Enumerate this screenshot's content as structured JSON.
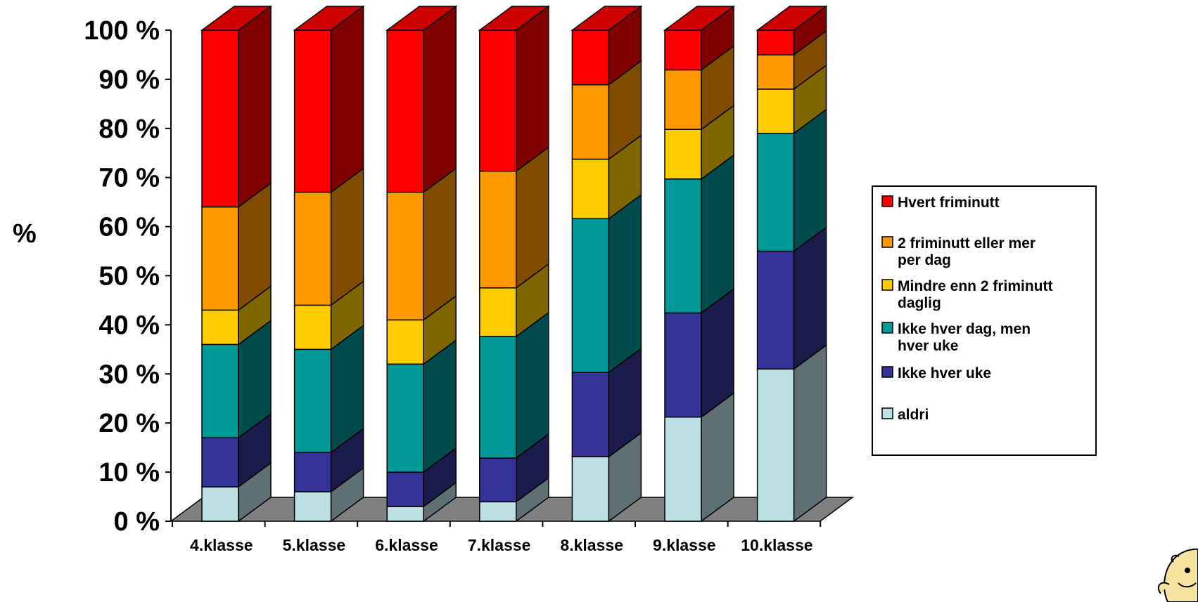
{
  "chart_data": {
    "type": "bar",
    "stacked": true,
    "percent_stacked": true,
    "three_d": true,
    "ylabel": "%",
    "xlabel": "",
    "ylim": [
      0,
      100
    ],
    "y_ticks": [
      "0 %",
      "10 %",
      "20 %",
      "30 %",
      "40 %",
      "50 %",
      "60 %",
      "70 %",
      "80 %",
      "90 %",
      "100 %"
    ],
    "categories": [
      "4.klasse",
      "5.klasse",
      "6.klasse",
      "7.klasse",
      "8.klasse",
      "9.klasse",
      "10.klasse"
    ],
    "series": [
      {
        "name": "aldri",
        "color": "#BDE0E4",
        "side_color": "#5F7074",
        "values": [
          7,
          6,
          3,
          4,
          13,
          21,
          31
        ]
      },
      {
        "name": "Ikke hver uke",
        "color": "#333399",
        "side_color": "#1C1C4C",
        "values": [
          10,
          8,
          7,
          9,
          17,
          21,
          24
        ]
      },
      {
        "name": "Ikke hver dag, men hver uke",
        "color": "#009999",
        "side_color": "#004C4C",
        "values": [
          19,
          21,
          22,
          25,
          31,
          27,
          24
        ]
      },
      {
        "name": "Mindre enn 2 friminutt daglig",
        "color": "#FFCC00",
        "side_color": "#806600",
        "values": [
          7,
          9,
          9,
          10,
          12,
          10,
          9
        ]
      },
      {
        "name": "2 friminutt eller mer per dag",
        "color": "#FF9900",
        "side_color": "#804C00",
        "values": [
          21,
          23,
          26,
          24,
          15,
          12,
          7
        ]
      },
      {
        "name": "Hvert friminutt",
        "color": "#FF0000",
        "side_color": "#800000",
        "values": [
          36,
          33,
          33,
          29,
          11,
          8,
          5
        ]
      }
    ],
    "legend": {
      "position": "right",
      "entries": [
        {
          "color": "#FF0000",
          "lines": [
            "Hvert friminutt"
          ]
        },
        {
          "color": "#FF9900",
          "lines": [
            "2 friminutt eller mer",
            "per dag"
          ]
        },
        {
          "color": "#FFCC00",
          "lines": [
            "Mindre enn 2 friminutt",
            "daglig"
          ]
        },
        {
          "color": "#009999",
          "lines": [
            "Ikke hver dag, men",
            "hver uke"
          ]
        },
        {
          "color": "#333399",
          "lines": [
            "Ikke hver uke"
          ]
        },
        {
          "color": "#BDE0E4",
          "lines": [
            "aldri"
          ]
        }
      ]
    },
    "floor_color": "#808080",
    "grid": false
  },
  "decoration": {
    "icon": "cartoon-figure-icon"
  }
}
